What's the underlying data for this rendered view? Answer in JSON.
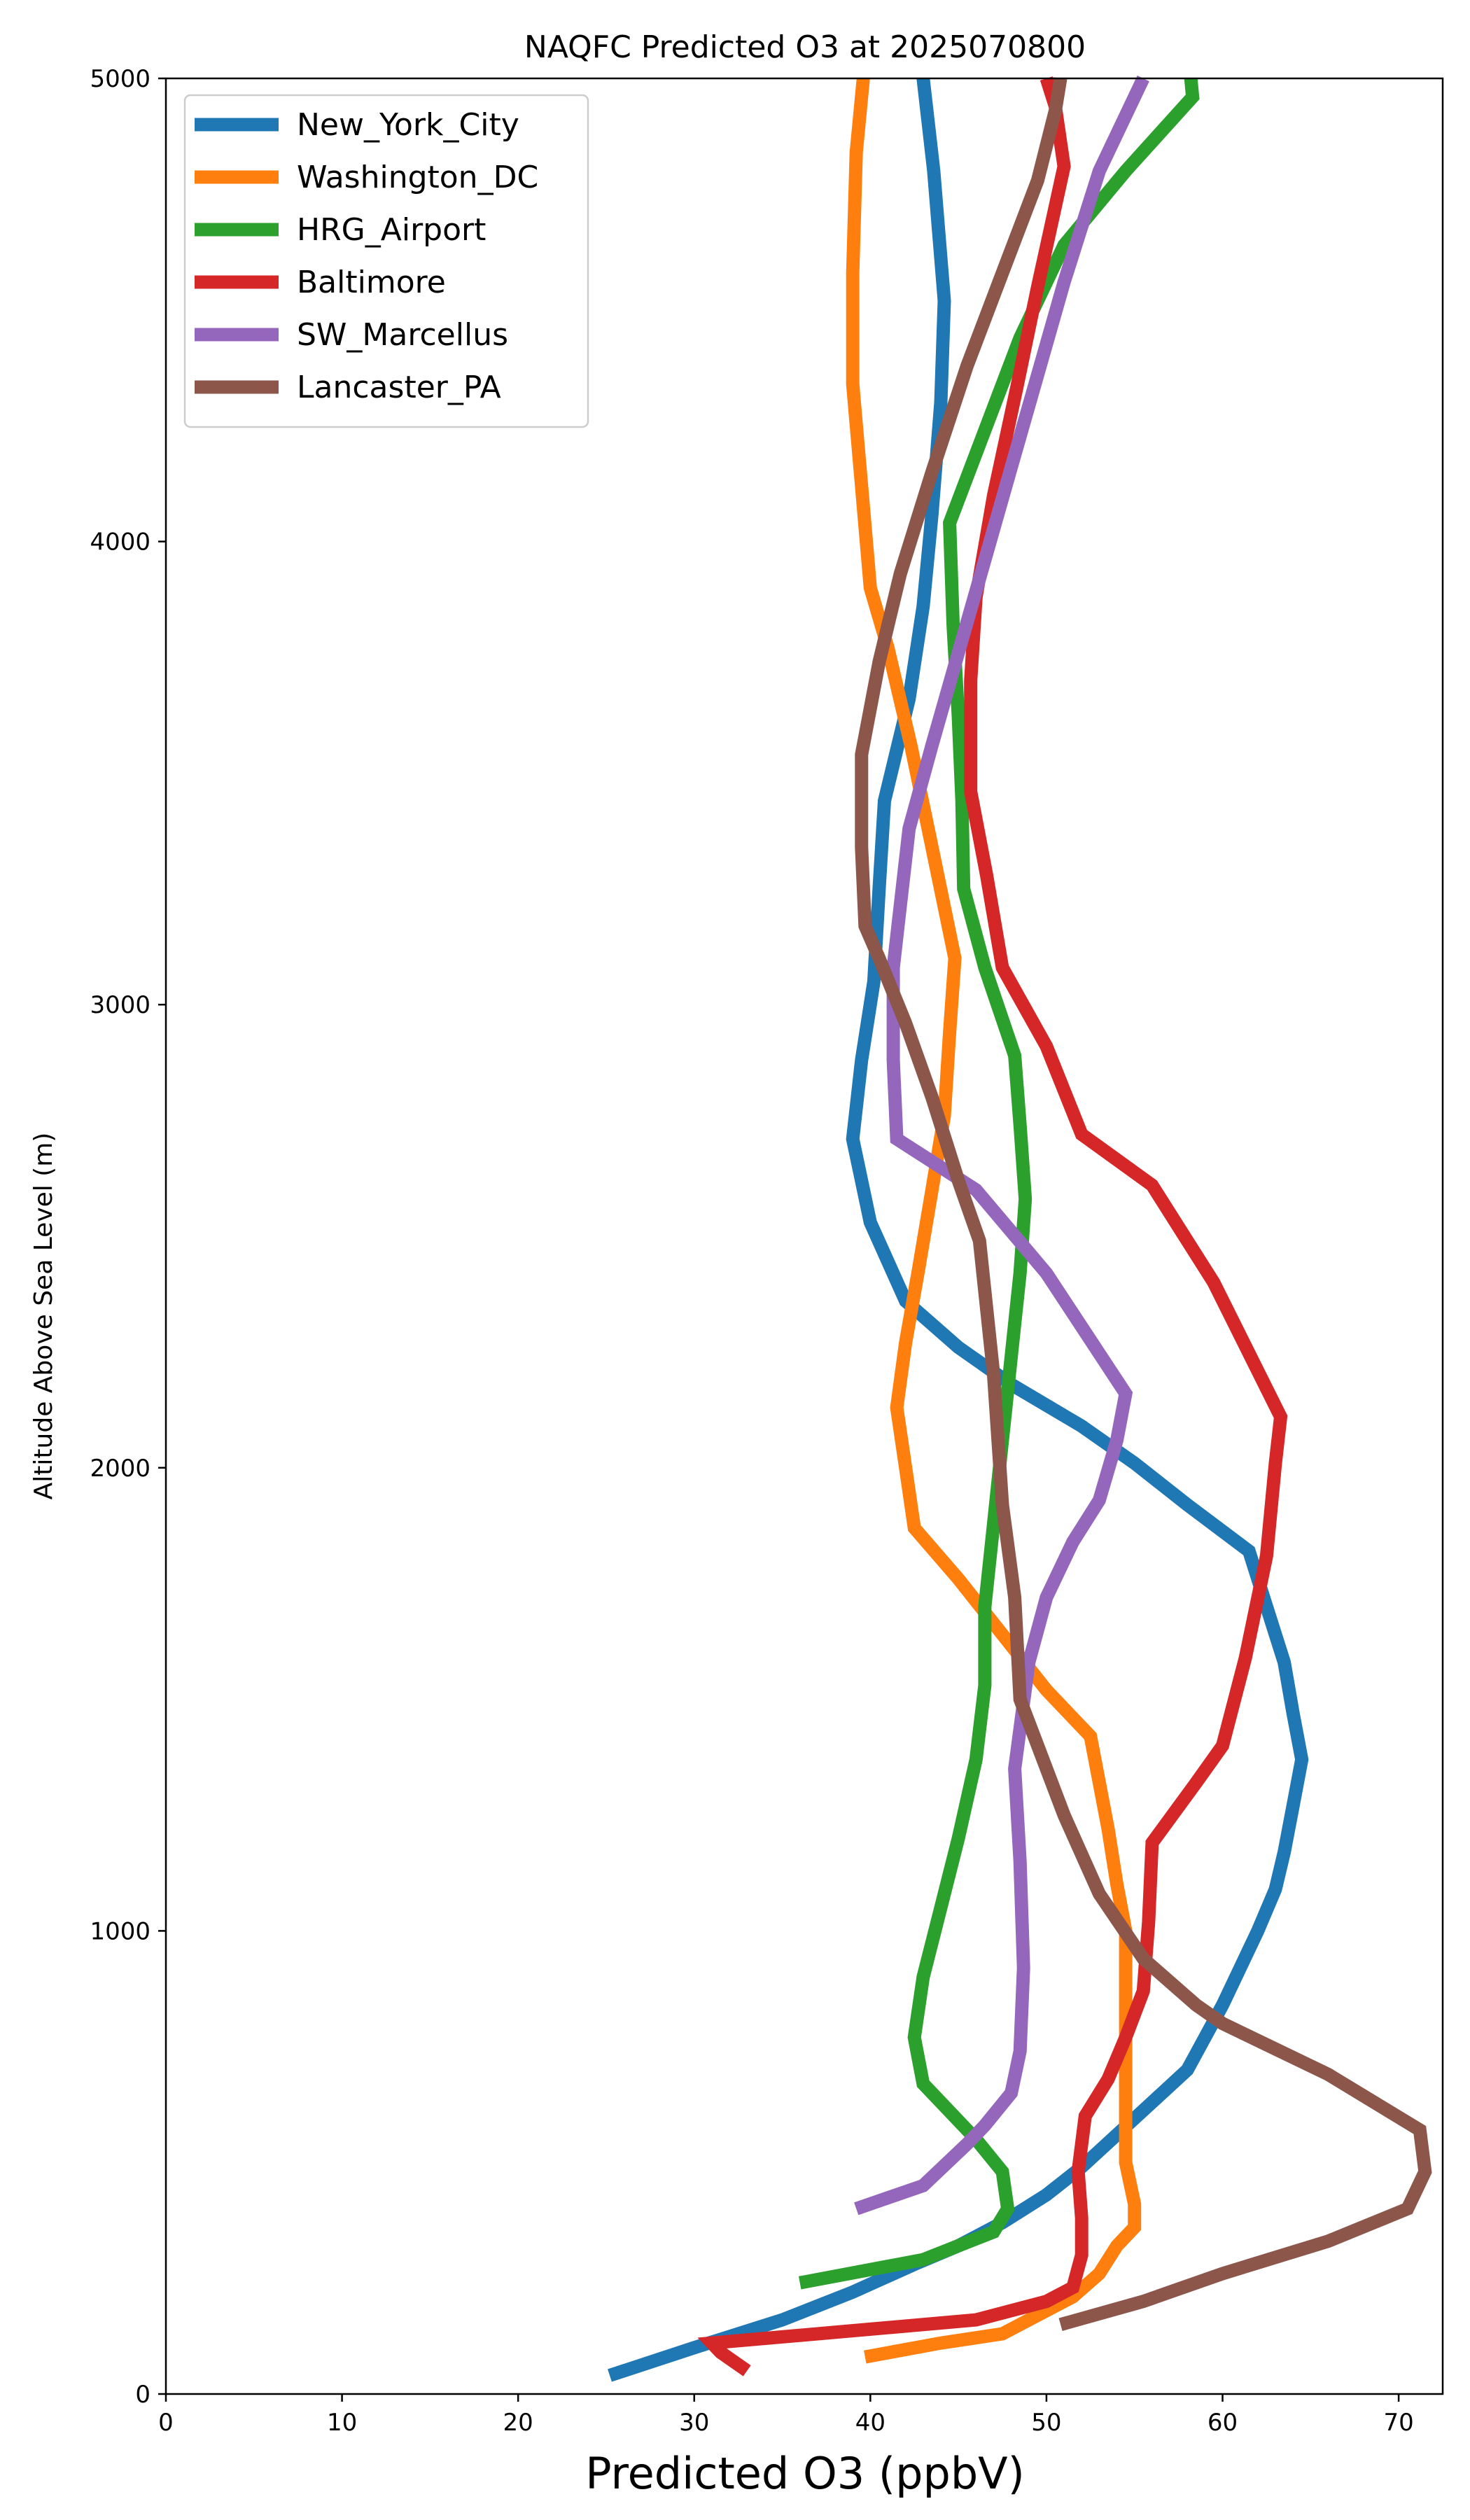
{
  "chart_data": {
    "type": "line",
    "title": "NAQFC Predicted O3 at 2025070800",
    "xlabel": "Predicted O3 (ppbV)",
    "ylabel": "Altitude Above Sea Level (m)",
    "xlim": [
      0,
      72.5
    ],
    "ylim": [
      0,
      5000
    ],
    "xticks": [
      0,
      10,
      20,
      30,
      40,
      50,
      60,
      70
    ],
    "yticks": [
      0,
      1000,
      2000,
      3000,
      4000,
      5000
    ],
    "grid": false,
    "legend_position": "upper-left",
    "series": [
      {
        "name": "New_York_City",
        "color": "#1f77b4",
        "points": [
          [
            25.2,
            40
          ],
          [
            30,
            100
          ],
          [
            35,
            160
          ],
          [
            39,
            220
          ],
          [
            42.5,
            280
          ],
          [
            45,
            320
          ],
          [
            47.5,
            370
          ],
          [
            50,
            430
          ],
          [
            52,
            490
          ],
          [
            54,
            560
          ],
          [
            56,
            630
          ],
          [
            58,
            700
          ],
          [
            59,
            770
          ],
          [
            60,
            840
          ],
          [
            61,
            920
          ],
          [
            62,
            1000
          ],
          [
            63,
            1090
          ],
          [
            63.5,
            1170
          ],
          [
            64,
            1270
          ],
          [
            64.5,
            1370
          ],
          [
            64,
            1470
          ],
          [
            63.5,
            1580
          ],
          [
            62.5,
            1700
          ],
          [
            61.5,
            1820
          ],
          [
            58,
            1920
          ],
          [
            55,
            2010
          ],
          [
            52,
            2090
          ],
          [
            48,
            2180
          ],
          [
            45,
            2260
          ],
          [
            42,
            2360
          ],
          [
            40,
            2530
          ],
          [
            39,
            2710
          ],
          [
            39.5,
            2880
          ],
          [
            40.2,
            3050
          ],
          [
            40.5,
            3250
          ],
          [
            40.8,
            3440
          ],
          [
            42.2,
            3660
          ],
          [
            43,
            3860
          ],
          [
            43.5,
            4060
          ],
          [
            44,
            4300
          ],
          [
            44.2,
            4520
          ],
          [
            43.6,
            4800
          ],
          [
            43,
            5000
          ]
        ]
      },
      {
        "name": "Washington_DC",
        "color": "#ff7f0e",
        "points": [
          [
            39.7,
            80
          ],
          [
            44,
            110
          ],
          [
            47.5,
            130
          ],
          [
            49.5,
            170
          ],
          [
            51.5,
            210
          ],
          [
            53,
            260
          ],
          [
            54,
            320
          ],
          [
            55,
            360
          ],
          [
            55,
            410
          ],
          [
            54.5,
            500
          ],
          [
            54.5,
            620
          ],
          [
            54.5,
            740
          ],
          [
            54.5,
            880
          ],
          [
            54.5,
            1000
          ],
          [
            54,
            1100
          ],
          [
            53.5,
            1220
          ],
          [
            52.5,
            1420
          ],
          [
            50,
            1520
          ],
          [
            47.5,
            1640
          ],
          [
            45,
            1760
          ],
          [
            42.5,
            1870
          ],
          [
            42,
            2000
          ],
          [
            41.5,
            2130
          ],
          [
            42,
            2270
          ],
          [
            42.7,
            2420
          ],
          [
            43.5,
            2600
          ],
          [
            44.2,
            2760
          ],
          [
            44.5,
            2940
          ],
          [
            44.8,
            3100
          ],
          [
            43.5,
            3340
          ],
          [
            42.3,
            3560
          ],
          [
            41,
            3770
          ],
          [
            40,
            3900
          ],
          [
            39.5,
            4120
          ],
          [
            39,
            4340
          ],
          [
            39,
            4580
          ],
          [
            39.2,
            4840
          ],
          [
            39.6,
            5000
          ]
        ]
      },
      {
        "name": "HRG_Airport",
        "color": "#2ca02c",
        "points": [
          [
            36,
            240
          ],
          [
            43,
            290
          ],
          [
            47,
            350
          ],
          [
            47.8,
            400
          ],
          [
            47.5,
            480
          ],
          [
            46,
            550
          ],
          [
            44.5,
            610
          ],
          [
            43,
            670
          ],
          [
            42.5,
            770
          ],
          [
            43,
            900
          ],
          [
            44,
            1050
          ],
          [
            45,
            1200
          ],
          [
            46,
            1370
          ],
          [
            46.5,
            1530
          ],
          [
            46.5,
            1700
          ],
          [
            47,
            1880
          ],
          [
            47.5,
            2060
          ],
          [
            48,
            2240
          ],
          [
            48.5,
            2420
          ],
          [
            48.8,
            2580
          ],
          [
            48.5,
            2740
          ],
          [
            48.2,
            2890
          ],
          [
            46.5,
            3080
          ],
          [
            45.3,
            3250
          ],
          [
            45.2,
            3440
          ],
          [
            45,
            3620
          ],
          [
            44.7,
            3820
          ],
          [
            44.5,
            4040
          ],
          [
            46.5,
            4240
          ],
          [
            48.5,
            4440
          ],
          [
            51,
            4640
          ],
          [
            54.5,
            4800
          ],
          [
            58.3,
            4960
          ],
          [
            58.2,
            5000
          ]
        ]
      },
      {
        "name": "Baltimore",
        "color": "#d62728",
        "points": [
          [
            33,
            50
          ],
          [
            31.5,
            90
          ],
          [
            31,
            110
          ],
          [
            40,
            140
          ],
          [
            46,
            160
          ],
          [
            50,
            200
          ],
          [
            51.5,
            230
          ],
          [
            52,
            300
          ],
          [
            52,
            380
          ],
          [
            51.8,
            480
          ],
          [
            52.2,
            600
          ],
          [
            53.5,
            680
          ],
          [
            54.5,
            770
          ],
          [
            55.5,
            870
          ],
          [
            55.8,
            1020
          ],
          [
            56,
            1190
          ],
          [
            58.5,
            1320
          ],
          [
            60,
            1400
          ],
          [
            61.3,
            1590
          ],
          [
            62.5,
            1810
          ],
          [
            63,
            2010
          ],
          [
            63.3,
            2110
          ],
          [
            59.5,
            2400
          ],
          [
            56,
            2610
          ],
          [
            52,
            2720
          ],
          [
            50,
            2910
          ],
          [
            47.5,
            3080
          ],
          [
            46.6,
            3280
          ],
          [
            45.7,
            3460
          ],
          [
            45.7,
            3700
          ],
          [
            46,
            3880
          ],
          [
            47,
            4100
          ],
          [
            48.3,
            4330
          ],
          [
            49.5,
            4550
          ],
          [
            51,
            4810
          ],
          [
            50.5,
            4940
          ],
          [
            50,
            5000
          ]
        ]
      },
      {
        "name": "SW_Marcellus",
        "color": "#9467bd",
        "points": [
          [
            39.2,
            400
          ],
          [
            43,
            450
          ],
          [
            45.5,
            540
          ],
          [
            46.5,
            580
          ],
          [
            48,
            650
          ],
          [
            48.5,
            740
          ],
          [
            48.7,
            920
          ],
          [
            48.5,
            1150
          ],
          [
            48.2,
            1350
          ],
          [
            49,
            1580
          ],
          [
            50,
            1720
          ],
          [
            51.5,
            1840
          ],
          [
            53,
            1930
          ],
          [
            54,
            2060
          ],
          [
            54.5,
            2160
          ],
          [
            50,
            2420
          ],
          [
            46,
            2600
          ],
          [
            41.5,
            2710
          ],
          [
            41.3,
            2880
          ],
          [
            41.3,
            3080
          ],
          [
            41.6,
            3180
          ],
          [
            42.2,
            3380
          ],
          [
            43.5,
            3560
          ],
          [
            45,
            3760
          ],
          [
            46.5,
            3960
          ],
          [
            48,
            4160
          ],
          [
            49.5,
            4360
          ],
          [
            51,
            4560
          ],
          [
            53,
            4800
          ],
          [
            55.5,
            5000
          ]
        ]
      },
      {
        "name": "Lancaster_PA",
        "color": "#8c564b",
        "points": [
          [
            50.8,
            150
          ],
          [
            55.5,
            200
          ],
          [
            60,
            260
          ],
          [
            66,
            330
          ],
          [
            70.5,
            400
          ],
          [
            71.5,
            480
          ],
          [
            71.2,
            570
          ],
          [
            66,
            690
          ],
          [
            60,
            800
          ],
          [
            58.5,
            840
          ],
          [
            55.5,
            940
          ],
          [
            53,
            1080
          ],
          [
            51,
            1250
          ],
          [
            49.5,
            1400
          ],
          [
            48.5,
            1500
          ],
          [
            48.2,
            1720
          ],
          [
            47.5,
            1920
          ],
          [
            47,
            2200
          ],
          [
            46.2,
            2490
          ],
          [
            45,
            2620
          ],
          [
            43.5,
            2800
          ],
          [
            42,
            2960
          ],
          [
            40.5,
            3100
          ],
          [
            39.7,
            3170
          ],
          [
            39.5,
            3340
          ],
          [
            39.5,
            3540
          ],
          [
            40.5,
            3740
          ],
          [
            41.7,
            3930
          ],
          [
            43.5,
            4150
          ],
          [
            45.5,
            4380
          ],
          [
            47.5,
            4580
          ],
          [
            49.5,
            4780
          ],
          [
            50.5,
            4930
          ],
          [
            50.8,
            5000
          ]
        ]
      }
    ]
  }
}
